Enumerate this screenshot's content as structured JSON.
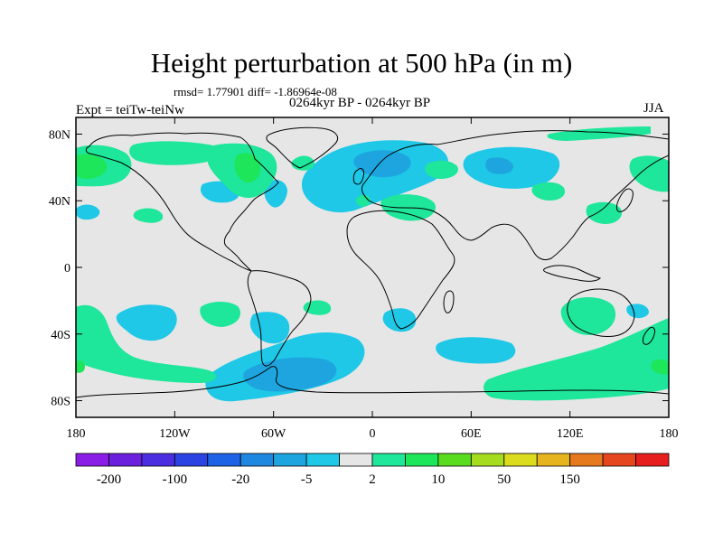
{
  "header": {
    "title": "Height perturbation at 500 hPa (in m)",
    "stats": "rmsd= 1.77901 diff= -1.86964e-08",
    "period": "0264kyr BP - 0264kyr BP",
    "experiment": "Expt = teiTw-teiNw",
    "season": "JJA"
  },
  "map": {
    "projection": "cylindrical equidistant",
    "lon_range": [
      -180,
      180
    ],
    "lat_range": [
      -90,
      90
    ],
    "lat_tick_labels": [
      "80N",
      "40N",
      "0",
      "40S",
      "80S"
    ],
    "lon_tick_labels": [
      "180",
      "120W",
      "60W",
      "0",
      "60E",
      "120E",
      "180"
    ],
    "background_color": "#e6e6e6",
    "coastline_color": "#000000"
  },
  "colorbar": {
    "labels": [
      "-200",
      "-100",
      "-20",
      "-5",
      "2",
      "10",
      "50",
      "150"
    ],
    "colors": [
      "#8a1ee6",
      "#6a20dd",
      "#4a2ee0",
      "#2a43e2",
      "#1e63e6",
      "#1e87e0",
      "#1ea5df",
      "#1ec8e6",
      "#e6e6e6",
      "#1ee69a",
      "#1ee65a",
      "#5adc1e",
      "#a6dc1e",
      "#dcdc1e",
      "#e6b41e",
      "#e6781e",
      "#e6461e",
      "#e61e1e"
    ]
  },
  "palette": {
    "neg_light": "#1ec8e6",
    "neg_mid": "#1ea5df",
    "pos_light": "#1ee69a",
    "pos_mid": "#1ee65a"
  }
}
